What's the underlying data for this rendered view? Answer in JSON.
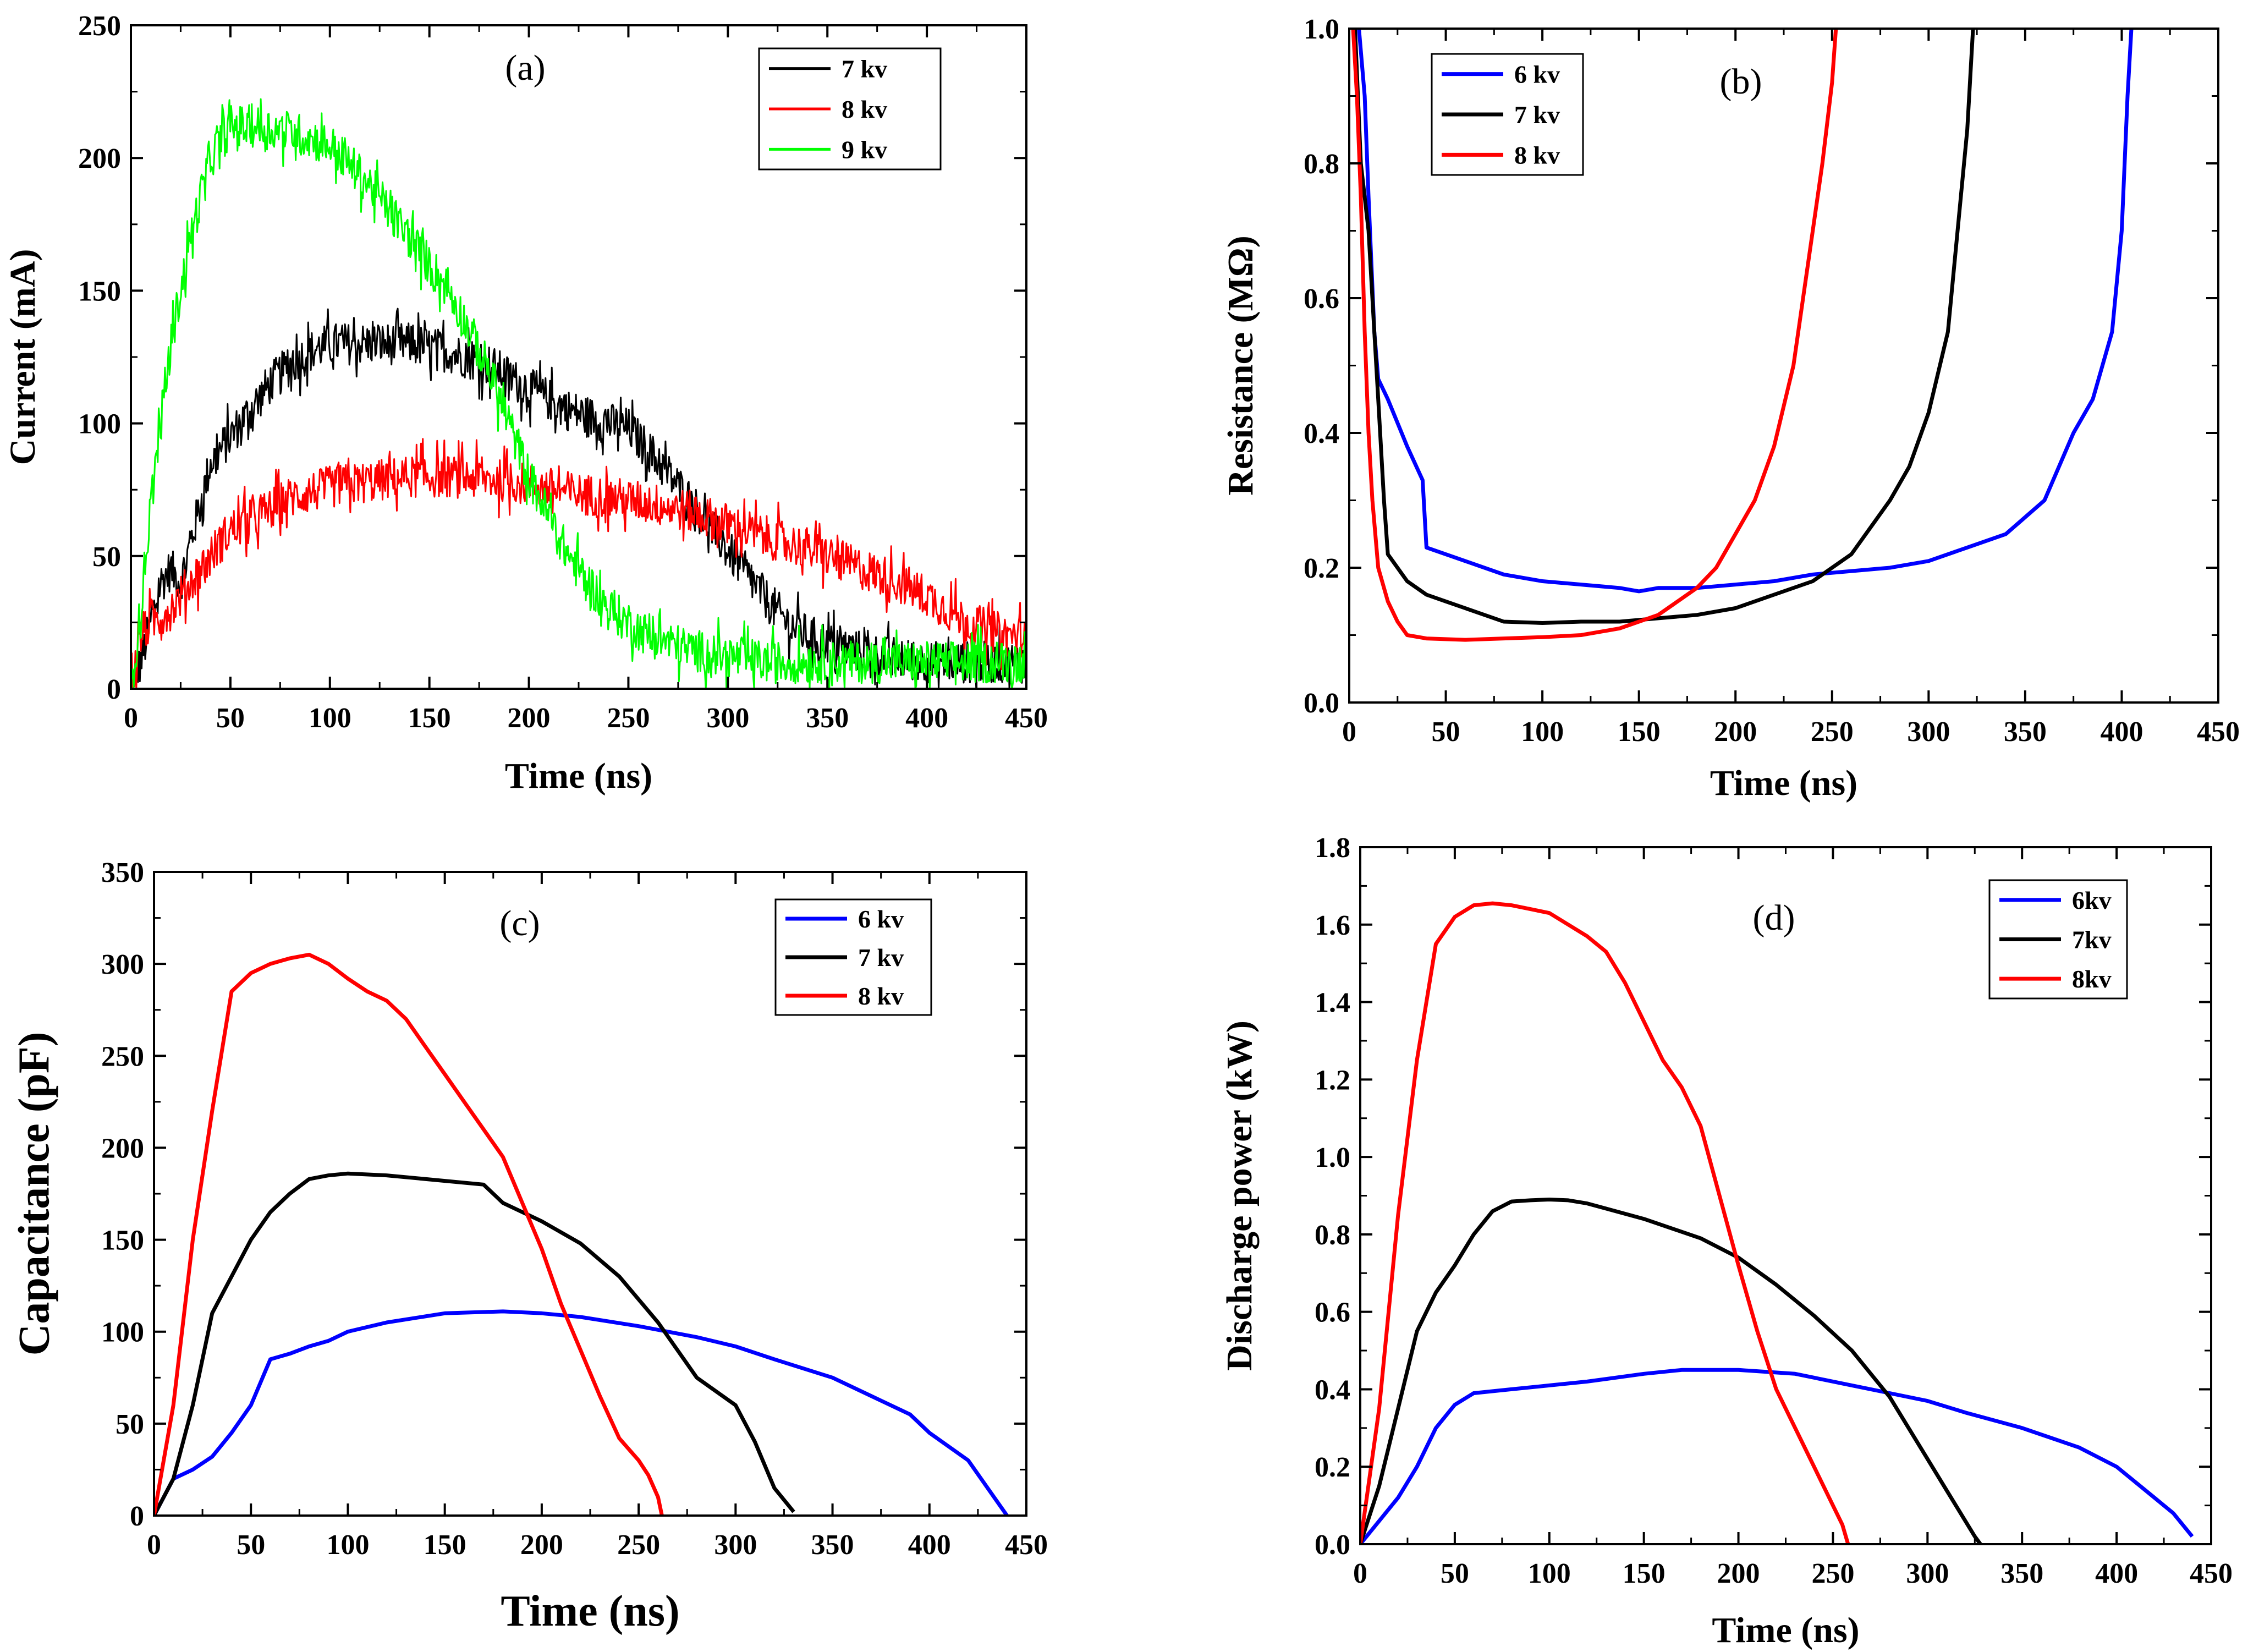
{
  "chart_data": [
    {
      "type": "line",
      "panel_label": "(a)",
      "xlabel": "Time (ns)",
      "ylabel": "Current (mA)",
      "xlim": [
        0,
        450
      ],
      "ylim": [
        0,
        250
      ],
      "xticks": [
        0,
        50,
        100,
        150,
        200,
        250,
        300,
        350,
        400,
        450
      ],
      "yticks": [
        0,
        50,
        100,
        150,
        200,
        250
      ],
      "legend_position": "top-right",
      "noise": 8,
      "series": [
        {
          "name": "7 kv",
          "color": "#000000",
          "x": [
            0,
            5,
            10,
            15,
            20,
            25,
            30,
            40,
            50,
            60,
            70,
            80,
            90,
            100,
            120,
            140,
            160,
            180,
            200,
            220,
            240,
            250,
            260,
            280,
            300,
            320,
            330,
            340,
            360,
            380,
            400,
            420,
            440,
            450
          ],
          "y": [
            0,
            10,
            25,
            40,
            45,
            40,
            55,
            85,
            95,
            105,
            115,
            122,
            127,
            130,
            130,
            130,
            127,
            122,
            113,
            105,
            100,
            98,
            90,
            72,
            52,
            33,
            25,
            20,
            15,
            12,
            10,
            10,
            10,
            10
          ]
        },
        {
          "name": "8 kv",
          "color": "#ff0000",
          "x": [
            0,
            5,
            10,
            20,
            30,
            40,
            50,
            60,
            80,
            100,
            120,
            140,
            160,
            180,
            200,
            220,
            240,
            260,
            280,
            300,
            320,
            340,
            360,
            380,
            400,
            420,
            440,
            450
          ],
          "y": [
            0,
            20,
            25,
            30,
            40,
            50,
            60,
            63,
            72,
            76,
            78,
            80,
            80,
            79,
            77,
            74,
            72,
            70,
            67,
            62,
            57,
            53,
            47,
            42,
            35,
            25,
            20,
            20
          ]
        },
        {
          "name": "9 kv",
          "color": "#00ff00",
          "x": [
            0,
            5,
            10,
            20,
            30,
            40,
            50,
            60,
            80,
            100,
            120,
            140,
            160,
            180,
            200,
            220,
            240,
            260,
            280,
            300,
            320,
            340,
            360,
            380,
            400,
            420,
            450
          ],
          "y": [
            0,
            30,
            70,
            130,
            170,
            200,
            212,
            212,
            210,
            205,
            190,
            170,
            150,
            120,
            80,
            50,
            30,
            20,
            15,
            12,
            10,
            10,
            10,
            10,
            10,
            10,
            10
          ]
        }
      ]
    },
    {
      "type": "line",
      "panel_label": "(b)",
      "xlabel": "Time (ns)",
      "ylabel": "Resistance (MΩ)",
      "xlim": [
        0,
        450
      ],
      "ylim": [
        0,
        1.0
      ],
      "xticks": [
        0,
        50,
        100,
        150,
        200,
        250,
        300,
        350,
        400,
        450
      ],
      "yticks": [
        0.0,
        0.2,
        0.4,
        0.6,
        0.8,
        1.0
      ],
      "tick_decimals": 1,
      "legend_position": "top-left",
      "series": [
        {
          "name": "6 kv",
          "color": "#0000ff",
          "x": [
            5,
            8,
            10,
            13,
            15,
            20,
            30,
            38,
            40,
            60,
            80,
            100,
            120,
            140,
            150,
            160,
            180,
            200,
            220,
            240,
            260,
            280,
            300,
            320,
            340,
            360,
            375,
            385,
            395,
            400,
            403,
            405
          ],
          "y": [
            1.0,
            0.9,
            0.75,
            0.55,
            0.48,
            0.45,
            0.38,
            0.33,
            0.23,
            0.21,
            0.19,
            0.18,
            0.175,
            0.17,
            0.165,
            0.17,
            0.17,
            0.175,
            0.18,
            0.19,
            0.195,
            0.2,
            0.21,
            0.23,
            0.25,
            0.3,
            0.4,
            0.45,
            0.55,
            0.7,
            0.9,
            1.0
          ]
        },
        {
          "name": "7 kv",
          "color": "#000000",
          "x": [
            3,
            6,
            10,
            13,
            15,
            18,
            20,
            30,
            40,
            50,
            60,
            80,
            100,
            120,
            140,
            160,
            180,
            200,
            220,
            240,
            250,
            260,
            270,
            280,
            290,
            300,
            310,
            315,
            320,
            323
          ],
          "y": [
            1.0,
            0.8,
            0.7,
            0.55,
            0.45,
            0.3,
            0.22,
            0.18,
            0.16,
            0.15,
            0.14,
            0.12,
            0.118,
            0.12,
            0.12,
            0.125,
            0.13,
            0.14,
            0.16,
            0.18,
            0.2,
            0.22,
            0.26,
            0.3,
            0.35,
            0.43,
            0.55,
            0.7,
            0.85,
            1.0
          ]
        },
        {
          "name": "8 kv",
          "color": "#ff0000",
          "x": [
            2,
            4,
            6,
            8,
            10,
            12,
            15,
            20,
            25,
            30,
            40,
            60,
            80,
            100,
            120,
            140,
            160,
            180,
            190,
            200,
            210,
            220,
            230,
            235,
            240,
            245,
            250,
            252
          ],
          "y": [
            1.0,
            0.9,
            0.75,
            0.55,
            0.4,
            0.3,
            0.2,
            0.15,
            0.12,
            0.1,
            0.095,
            0.093,
            0.095,
            0.097,
            0.1,
            0.11,
            0.13,
            0.17,
            0.2,
            0.25,
            0.3,
            0.38,
            0.5,
            0.6,
            0.7,
            0.8,
            0.92,
            1.0
          ]
        }
      ]
    },
    {
      "type": "line",
      "panel_label": "(c)",
      "xlabel": "Time (ns)",
      "ylabel": "Capacitance (pF)",
      "xlim": [
        0,
        450
      ],
      "ylim": [
        0,
        350
      ],
      "xticks": [
        0,
        50,
        100,
        150,
        200,
        250,
        300,
        350,
        400,
        450
      ],
      "yticks": [
        0,
        50,
        100,
        150,
        200,
        250,
        300,
        350
      ],
      "legend_position": "top-right",
      "series": [
        {
          "name": "6 kv",
          "color": "#0000ff",
          "x": [
            0,
            10,
            20,
            30,
            40,
            50,
            60,
            70,
            80,
            90,
            100,
            120,
            150,
            180,
            200,
            220,
            250,
            280,
            300,
            320,
            350,
            370,
            390,
            400,
            420,
            430,
            440
          ],
          "y": [
            0,
            20,
            25,
            32,
            45,
            60,
            85,
            88,
            92,
            95,
            100,
            105,
            110,
            111,
            110,
            108,
            103,
            97,
            92,
            85,
            75,
            65,
            55,
            45,
            30,
            15,
            0
          ]
        },
        {
          "name": "7 kv",
          "color": "#000000",
          "x": [
            0,
            10,
            20,
            30,
            40,
            50,
            60,
            70,
            80,
            90,
            100,
            120,
            150,
            170,
            180,
            200,
            220,
            240,
            260,
            270,
            280,
            300,
            310,
            320,
            330
          ],
          "y": [
            0,
            20,
            60,
            110,
            130,
            150,
            165,
            175,
            183,
            185,
            186,
            185,
            182,
            180,
            170,
            160,
            148,
            130,
            105,
            90,
            75,
            60,
            40,
            15,
            2
          ]
        },
        {
          "name": "8 kv",
          "color": "#ff0000",
          "x": [
            0,
            10,
            20,
            30,
            40,
            50,
            60,
            70,
            80,
            90,
            100,
            110,
            120,
            130,
            140,
            150,
            160,
            170,
            180,
            190,
            200,
            210,
            220,
            230,
            240,
            250,
            255,
            260,
            262
          ],
          "y": [
            0,
            60,
            150,
            220,
            285,
            295,
            300,
            303,
            305,
            300,
            292,
            285,
            280,
            270,
            255,
            240,
            225,
            210,
            195,
            170,
            145,
            115,
            90,
            65,
            42,
            30,
            22,
            10,
            0
          ]
        }
      ]
    },
    {
      "type": "line",
      "panel_label": "(d)",
      "xlabel": "Time (ns)",
      "ylabel": "Discharge power (kW)",
      "xlim": [
        0,
        450
      ],
      "ylim": [
        0,
        1.8
      ],
      "xticks": [
        0,
        50,
        100,
        150,
        200,
        250,
        300,
        350,
        400,
        450
      ],
      "yticks": [
        0.0,
        0.2,
        0.4,
        0.6,
        0.8,
        1.0,
        1.2,
        1.4,
        1.6,
        1.8
      ],
      "tick_decimals": 1,
      "legend_position": "top-right",
      "series": [
        {
          "name": "6kv",
          "color": "#0000ff",
          "x": [
            0,
            10,
            20,
            30,
            40,
            50,
            60,
            80,
            100,
            120,
            150,
            170,
            200,
            230,
            260,
            280,
            300,
            320,
            350,
            380,
            400,
            420,
            430,
            440
          ],
          "y": [
            0,
            0.06,
            0.12,
            0.2,
            0.3,
            0.36,
            0.39,
            0.4,
            0.41,
            0.42,
            0.44,
            0.45,
            0.45,
            0.44,
            0.41,
            0.39,
            0.37,
            0.34,
            0.3,
            0.25,
            0.2,
            0.12,
            0.08,
            0.02
          ]
        },
        {
          "name": "7kv",
          "color": "#000000",
          "x": [
            0,
            10,
            20,
            30,
            40,
            50,
            60,
            70,
            80,
            90,
            100,
            110,
            120,
            150,
            180,
            200,
            220,
            240,
            260,
            280,
            300,
            310,
            320,
            325,
            328
          ],
          "y": [
            0,
            0.15,
            0.35,
            0.55,
            0.65,
            0.72,
            0.8,
            0.86,
            0.885,
            0.888,
            0.89,
            0.888,
            0.88,
            0.84,
            0.79,
            0.74,
            0.67,
            0.59,
            0.5,
            0.38,
            0.22,
            0.14,
            0.06,
            0.02,
            0
          ]
        },
        {
          "name": "8kv",
          "color": "#ff0000",
          "x": [
            0,
            10,
            20,
            30,
            40,
            50,
            60,
            70,
            80,
            90,
            100,
            110,
            120,
            130,
            140,
            150,
            160,
            170,
            180,
            190,
            200,
            210,
            220,
            230,
            240,
            250,
            255,
            258
          ],
          "y": [
            0,
            0.35,
            0.85,
            1.25,
            1.55,
            1.62,
            1.65,
            1.655,
            1.65,
            1.64,
            1.63,
            1.6,
            1.57,
            1.53,
            1.45,
            1.35,
            1.25,
            1.18,
            1.08,
            0.9,
            0.72,
            0.55,
            0.4,
            0.3,
            0.2,
            0.1,
            0.05,
            0
          ]
        }
      ]
    }
  ]
}
